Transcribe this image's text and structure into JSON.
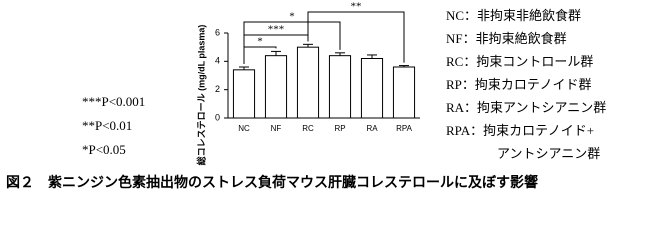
{
  "chart_data": {
    "type": "bar",
    "title": "図２　紫ニンジン色素抽出物のストレス負荷マウス肝臓コレステロールに及ぼす影響",
    "y_label": "総コレステロール (mg/dL plasma)",
    "categories": [
      "NC",
      "NF",
      "RC",
      "RP",
      "RA",
      "RPA"
    ],
    "values": [
      3.4,
      4.4,
      5.0,
      4.4,
      4.2,
      3.6
    ],
    "errors": [
      0.2,
      0.3,
      0.2,
      0.2,
      0.25,
      0.1
    ],
    "color": "#ffffff",
    "ylim": [
      0,
      6
    ],
    "yticks": [
      0,
      2,
      4,
      6
    ],
    "significance": [
      "*",
      "***",
      "*",
      "**"
    ],
    "p_notes": [
      "***P<0.001",
      "**P<0.01",
      "*P<0.05"
    ],
    "group_notes": [
      "NC：非拘束非絶飲食群",
      "NF：非拘束絶飲食群",
      "RC：拘束コントロール群",
      "RP：拘束カロテノイド群",
      "RA：拘束アントシアニン群",
      "RPA：拘束カロテノイド+",
      "アントシアニン群"
    ]
  }
}
